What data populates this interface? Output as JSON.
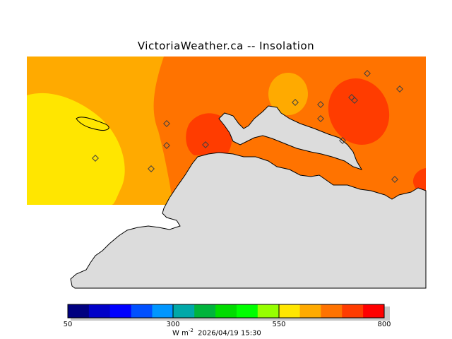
{
  "title": "VictoriaWeather.ca -- Insolation",
  "colors": {
    "land": "#dcdcdc",
    "coast": "#000000",
    "levels": [
      "#000080",
      "#0000c8",
      "#0000ff",
      "#0050ff",
      "#0096ff",
      "#00a8a8",
      "#00b43c",
      "#00dc00",
      "#00ff00",
      "#96ff00",
      "#ffe600",
      "#ffaa00",
      "#ff7300",
      "#ff3c00",
      "#ff0000"
    ]
  },
  "colorbar": {
    "min": 50,
    "max": 800,
    "tick_labels": [
      "50",
      "300",
      "550",
      "800"
    ],
    "unit_prefix": "W m",
    "unit_exponent": "-2",
    "timestamp": "2026/04/19 15:30"
  },
  "stations": 14
}
